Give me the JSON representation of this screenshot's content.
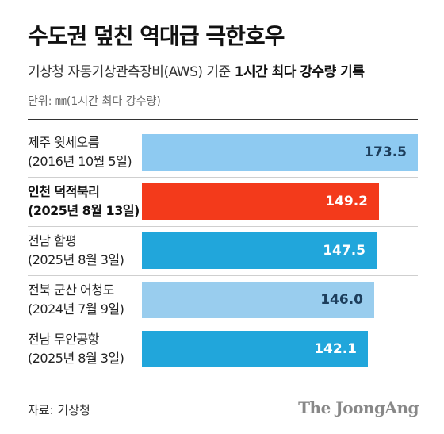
{
  "title": "수도권 덮친 역대급 극한호우",
  "subtitle_prefix": "기상청 자동기상관측장비(AWS) 기준 ",
  "subtitle_bold": "1시간 최다 강수량 기록",
  "unit": "단위: ㎜(1시간 최다 강수량)",
  "source": "자료: 기상청",
  "brand": "The JoongAng",
  "colors": {
    "light_blue": "#8ecaf1",
    "medium_blue": "#21a6db",
    "highlight": "#f33a1b",
    "sky_blue": "#99cdee"
  },
  "chart_data": {
    "type": "bar",
    "orientation": "horizontal",
    "categories": [
      [
        "제주 윗세오름",
        "(2016년 10월 5일)"
      ],
      [
        "인천 덕적북리",
        "(2025년 8월 13일)"
      ],
      [
        "전남 함평",
        "(2025년 8월 3일)"
      ],
      [
        "전북 군산 어청도",
        "(2024년 7월 9일)"
      ],
      [
        "전남 무안공항",
        "(2025년 8월 3일)"
      ]
    ],
    "values": [
      173.5,
      149.2,
      147.5,
      146.0,
      142.1
    ],
    "value_labels": [
      "173.5",
      "149.2",
      "147.5",
      "146.0",
      "142.1"
    ],
    "bar_colors": [
      "#8ecaf1",
      "#f33a1b",
      "#21a6db",
      "#99cdee",
      "#21a6db"
    ],
    "highlighted": [
      false,
      true,
      false,
      false,
      false
    ],
    "xlim": [
      0,
      173.5
    ]
  }
}
